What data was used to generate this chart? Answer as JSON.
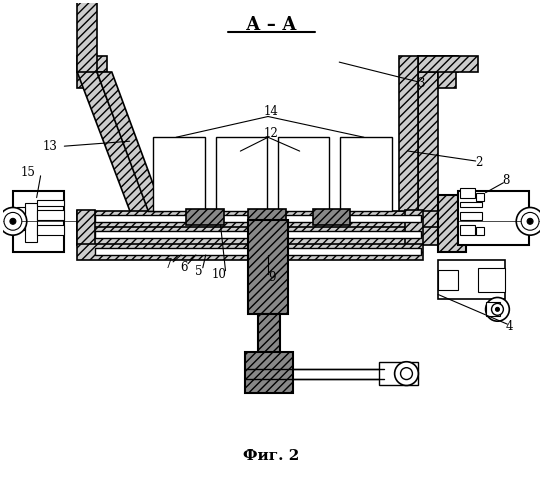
{
  "title": "А – А",
  "caption": "Фиг. 2",
  "bg": "#ffffff",
  "hc": "#aaaaaa",
  "lc": "#000000"
}
